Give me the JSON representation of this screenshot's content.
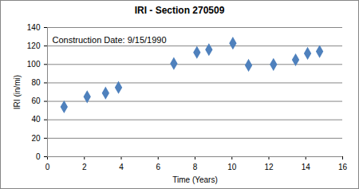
{
  "chart_data": {
    "type": "scatter",
    "title": "IRI - Section 270509",
    "annotation": "Construction Date: 9/15/1990",
    "x_label": "Time (Years)",
    "y_label": "IRI (in/mi)",
    "x": [
      0.9,
      2.15,
      3.15,
      3.85,
      6.85,
      8.1,
      8.75,
      10.05,
      10.9,
      12.25,
      13.45,
      14.1,
      14.75
    ],
    "values": [
      54,
      65,
      69,
      75,
      101,
      113,
      116,
      123,
      99,
      100,
      105,
      112,
      114
    ],
    "color": "#4f81bd",
    "marker": "diamond",
    "xlim": [
      0,
      16
    ],
    "xticks": [
      0,
      2,
      4,
      6,
      8,
      10,
      12,
      14,
      16
    ],
    "ylim": [
      0,
      140
    ],
    "yticks": [
      0,
      20,
      40,
      60,
      80,
      100,
      120,
      140
    ],
    "grid": true
  }
}
